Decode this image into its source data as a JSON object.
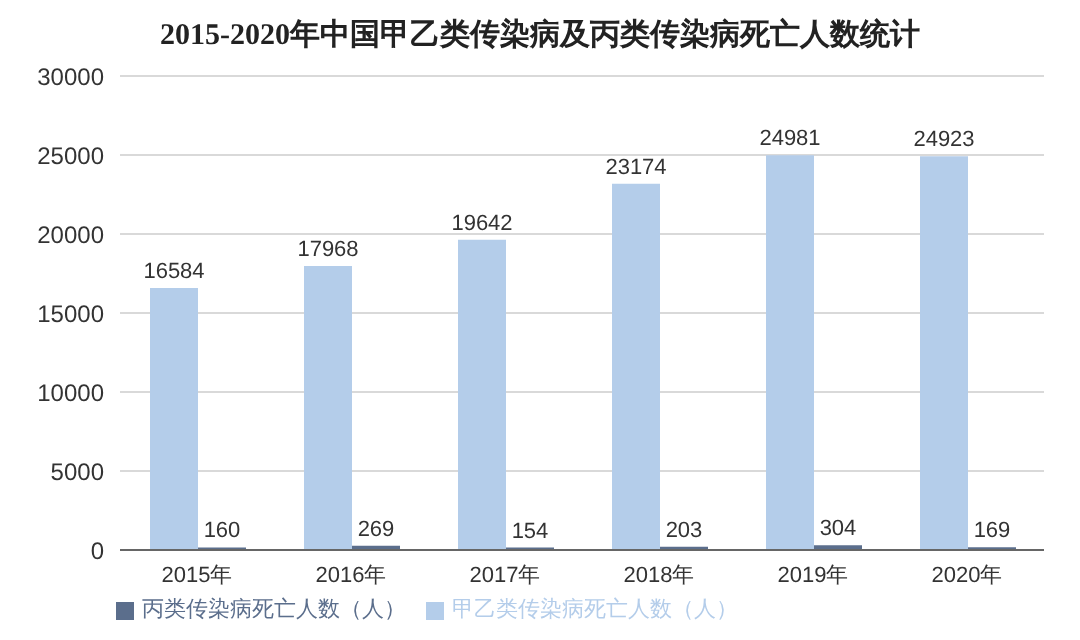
{
  "chart_data": {
    "type": "bar",
    "title": "2015-2020年中国甲乙类传染病及丙类传染病死亡人数统计",
    "categories": [
      "2015年",
      "2016年",
      "2017年",
      "2018年",
      "2019年",
      "2020年"
    ],
    "series": [
      {
        "name": "甲乙类传染病死亡人数（人）",
        "color": "#b4cdea",
        "values": [
          16584,
          17968,
          19642,
          23174,
          24981,
          24923
        ]
      },
      {
        "name": "丙类传染病死亡人数（人）",
        "color": "#5b6e8c",
        "values": [
          160,
          269,
          154,
          203,
          304,
          169
        ]
      }
    ],
    "ylim": [
      0,
      30000
    ],
    "yticks": [
      0,
      5000,
      10000,
      15000,
      20000,
      25000,
      30000
    ],
    "grid": "y",
    "legend": "bottom left",
    "data_labels": true
  }
}
